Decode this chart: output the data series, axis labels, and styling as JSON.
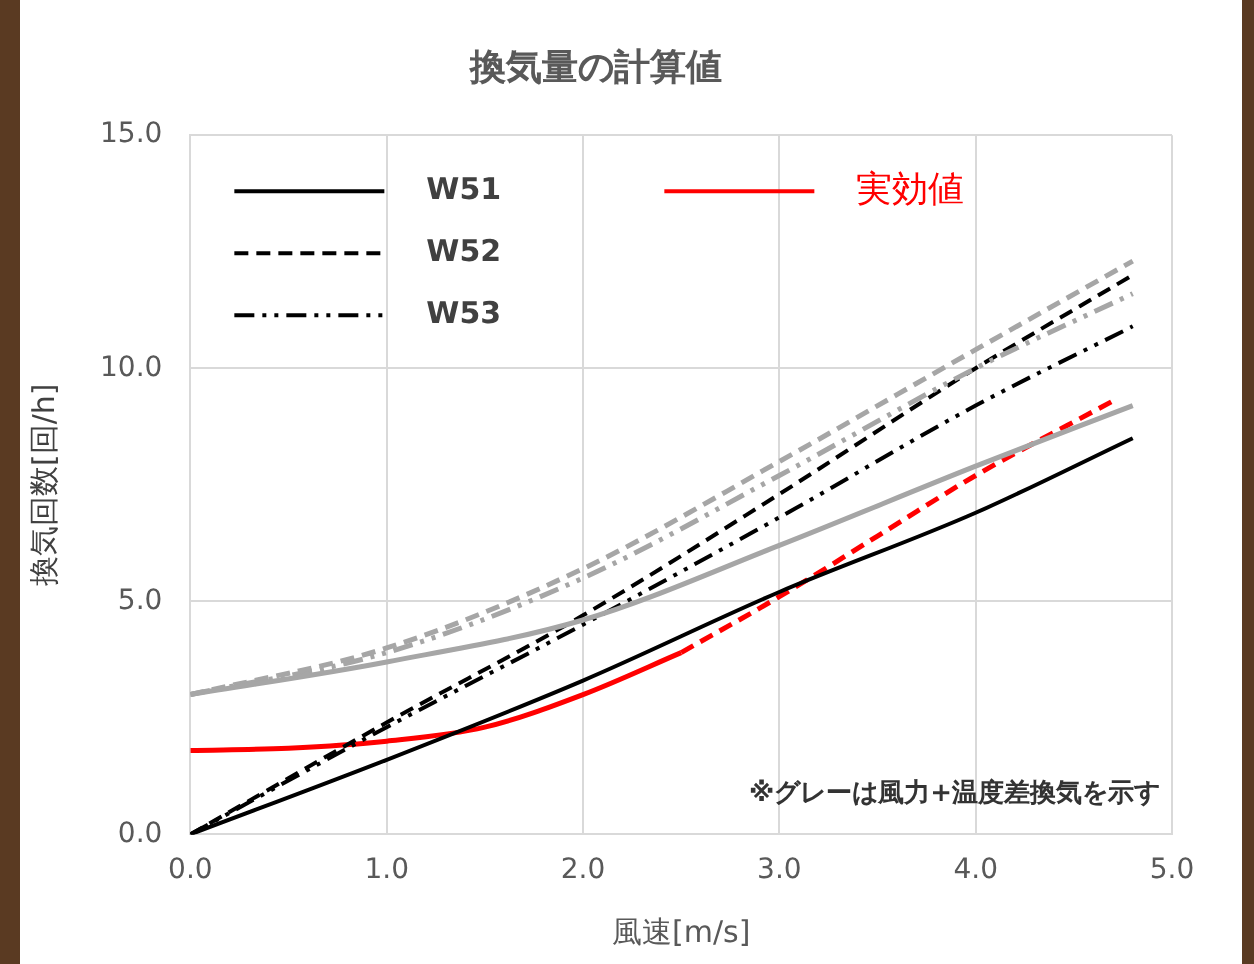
{
  "chart_data": {
    "type": "line",
    "title": "換気量の計算値",
    "xlabel": "風速[m/s]",
    "ylabel": "換気回数[回/h]",
    "xlim": [
      0,
      5
    ],
    "ylim": [
      0,
      15
    ],
    "xticks": [
      {
        "value": 0,
        "label": "0.0"
      },
      {
        "value": 1,
        "label": "1.0"
      },
      {
        "value": 2,
        "label": "2.0"
      },
      {
        "value": 3,
        "label": "3.0"
      },
      {
        "value": 4,
        "label": "4.0"
      },
      {
        "value": 5,
        "label": "5.0"
      }
    ],
    "yticks": [
      {
        "value": 0,
        "label": "0.0"
      },
      {
        "value": 5,
        "label": "5.0"
      },
      {
        "value": 10,
        "label": "10.0"
      },
      {
        "value": 15,
        "label": "15.0"
      }
    ],
    "grid": true,
    "legend": "top left",
    "marker": "none",
    "annotations": [
      "※グレーは風力+温度差換気を示す"
    ],
    "series": [
      {
        "color": "#a6a6a6",
        "line_style": "solid",
        "x": [
          0,
          1,
          2,
          3,
          4,
          4.8
        ],
        "values": [
          3.0,
          3.7,
          4.6,
          6.2,
          7.9,
          9.2
        ]
      },
      {
        "color": "#a6a6a6",
        "line_style": "dashed",
        "x": [
          0,
          1,
          2,
          3,
          4,
          4.8
        ],
        "values": [
          3.0,
          4.0,
          5.7,
          8.0,
          10.4,
          12.3
        ]
      },
      {
        "color": "#a6a6a6",
        "line_style": "dashdot",
        "x": [
          0,
          1,
          2,
          3,
          4,
          4.8
        ],
        "values": [
          3.0,
          3.9,
          5.5,
          7.7,
          10.0,
          11.6
        ]
      },
      {
        "name": "W51",
        "color": "#000000",
        "line_style": "solid",
        "x": [
          0,
          1,
          2,
          3,
          4,
          4.8
        ],
        "values": [
          0,
          1.6,
          3.3,
          5.2,
          6.9,
          8.5
        ]
      },
      {
        "name": "W52",
        "color": "#000000",
        "line_style": "dashed",
        "x": [
          0,
          1,
          2,
          3,
          4,
          4.8
        ],
        "values": [
          0,
          2.4,
          4.7,
          7.3,
          10.0,
          12.0
        ]
      },
      {
        "name": "W53",
        "color": "#000000",
        "line_style": "dashdot",
        "x": [
          0,
          1,
          2,
          3,
          4,
          4.8
        ],
        "values": [
          0,
          2.3,
          4.5,
          6.8,
          9.2,
          10.9
        ]
      },
      {
        "name": "実効値",
        "color": "#ff0000",
        "line_style": "solid",
        "x": [
          0,
          0.5,
          1,
          1.5,
          2,
          2.5
        ],
        "values": [
          1.8,
          1.85,
          2.0,
          2.3,
          3.0,
          3.9
        ]
      },
      {
        "color": "#ff0000",
        "line_style": "dashed",
        "x": [
          2.5,
          3,
          3.5,
          4,
          4.7
        ],
        "values": [
          3.9,
          5.1,
          6.4,
          7.7,
          9.3
        ]
      }
    ]
  }
}
